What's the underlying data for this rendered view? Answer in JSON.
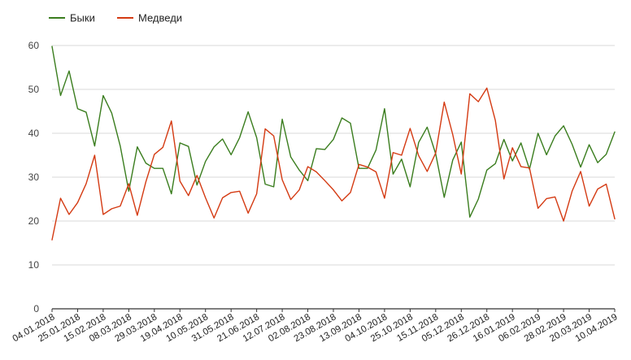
{
  "chart_data": {
    "type": "line",
    "title": "",
    "xlabel": "",
    "ylabel": "",
    "ylim": [
      0,
      60
    ],
    "yticks": [
      0,
      10,
      20,
      30,
      40,
      50,
      60
    ],
    "grid": true,
    "legend_position": "top-left",
    "x": [
      "04.01.2018",
      "11.01.2018",
      "18.01.2018",
      "25.01.2018",
      "01.02.2018",
      "08.02.2018",
      "15.02.2018",
      "22.02.2018",
      "01.03.2018",
      "08.03.2018",
      "15.03.2018",
      "22.03.2018",
      "29.03.2018",
      "05.04.2018",
      "12.04.2018",
      "19.04.2018",
      "26.04.2018",
      "03.05.2018",
      "10.05.2018",
      "17.05.2018",
      "24.05.2018",
      "31.05.2018",
      "07.06.2018",
      "14.06.2018",
      "21.06.2018",
      "28.06.2018",
      "05.07.2018",
      "12.07.2018",
      "19.07.2018",
      "26.07.2018",
      "02.08.2018",
      "09.08.2018",
      "16.08.2018",
      "23.08.2018",
      "30.08.2018",
      "06.09.2018",
      "13.09.2018",
      "20.09.2018",
      "27.09.2018",
      "04.10.2018",
      "11.10.2018",
      "18.10.2018",
      "25.10.2018",
      "01.11.2018",
      "08.11.2018",
      "15.11.2018",
      "22.11.2018",
      "29.11.2018",
      "05.12.2018",
      "12.12.2018",
      "19.12.2018",
      "26.12.2018",
      "02.01.2019",
      "09.01.2019",
      "16.01.2019",
      "23.01.2019",
      "30.01.2019",
      "06.02.2019",
      "13.02.2019",
      "20.02.2019",
      "28.02.2019",
      "06.03.2019",
      "13.03.2019",
      "20.03.2019",
      "27.03.2019",
      "03.04.2019",
      "10.04.2019"
    ],
    "xtick_labels": [
      "04.01.2018",
      "25.01.2018",
      "15.02.2018",
      "08.03.2018",
      "29.03.2018",
      "19.04.2018",
      "10.05.2018",
      "31.05.2018",
      "21.06.2018",
      "12.07.2018",
      "02.08.2018",
      "23.08.2018",
      "13.09.2018",
      "04.10.2018",
      "25.10.2018",
      "15.11.2018",
      "05.12.2018",
      "26.12.2018",
      "16.01.2019",
      "06.02.2019",
      "28.02.2019",
      "20.03.2019",
      "10.04.2019"
    ],
    "series": [
      {
        "name": "Быки",
        "color": "#3a7d1e",
        "values": [
          59.8,
          48.6,
          54.2,
          45.6,
          44.8,
          37.1,
          48.6,
          44.6,
          37.1,
          26.8,
          36.9,
          33.2,
          32.0,
          32.0,
          26.2,
          37.8,
          37.0,
          28.2,
          33.6,
          36.9,
          38.7,
          35.1,
          39.0,
          44.9,
          39.0,
          28.4,
          27.8,
          43.2,
          34.6,
          31.6,
          29.2,
          36.5,
          36.3,
          38.6,
          43.5,
          42.3,
          32.0,
          32.0,
          36.2,
          45.6,
          30.7,
          34.1,
          27.8,
          37.9,
          41.4,
          35.3,
          25.4,
          33.9,
          38.0,
          20.9,
          25.0,
          31.6,
          33.1,
          38.6,
          33.7,
          37.8,
          31.8,
          40.0,
          35.1,
          39.4,
          41.7,
          37.5,
          32.3,
          37.4,
          33.3,
          35.2,
          40.3
        ]
      },
      {
        "name": "Медведи",
        "color": "#d43a12",
        "values": [
          15.7,
          25.2,
          21.5,
          24.2,
          28.5,
          35.0,
          21.5,
          22.8,
          23.4,
          28.5,
          21.3,
          28.9,
          35.2,
          36.8,
          42.8,
          29.1,
          25.8,
          30.4,
          25.3,
          20.7,
          25.3,
          26.5,
          26.8,
          21.8,
          26.2,
          41.0,
          39.4,
          29.4,
          24.9,
          27.1,
          32.4,
          31.2,
          29.2,
          27.1,
          24.6,
          26.5,
          32.9,
          32.3,
          31.2,
          25.2,
          35.6,
          35.0,
          41.1,
          34.9,
          31.3,
          35.5,
          47.1,
          39.7,
          30.7,
          49.0,
          47.2,
          50.3,
          42.9,
          29.6,
          36.7,
          32.4,
          32.1,
          22.9,
          25.1,
          25.5,
          20.0,
          26.8,
          31.3,
          23.4,
          27.3,
          28.4,
          20.5
        ]
      }
    ]
  }
}
